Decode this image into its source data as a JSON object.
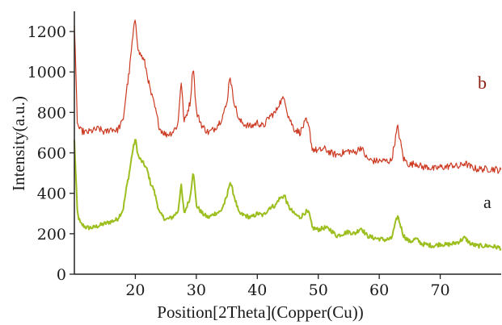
{
  "chart_data": {
    "type": "line",
    "title": "",
    "xlabel": "Position[2Theta](Copper(Cu))",
    "ylabel": "Intensity(a.u.)",
    "xlim": [
      10,
      80
    ],
    "ylim": [
      0,
      1300
    ],
    "xticks": [
      20,
      30,
      40,
      50,
      60,
      70
    ],
    "yticks": [
      0,
      200,
      400,
      600,
      800,
      1000,
      1200
    ],
    "grid": false,
    "series": [
      {
        "name": "a",
        "color": "#9cbf1f",
        "x": [
          10,
          10.5,
          11,
          12,
          13,
          14,
          15,
          16,
          17,
          18,
          18.5,
          19,
          19.5,
          20,
          20.5,
          21,
          21.5,
          22,
          22.5,
          23,
          24,
          25,
          26,
          27,
          27.5,
          28,
          29,
          29.5,
          30,
          31,
          32,
          33,
          34,
          35,
          35.5,
          36,
          37,
          38,
          39,
          40,
          41,
          42,
          43,
          43.5,
          44,
          44.5,
          45,
          46,
          47,
          48,
          48.5,
          49,
          50,
          51,
          52,
          53,
          54,
          55,
          56,
          57,
          58,
          59,
          60,
          61,
          62,
          63,
          64,
          65,
          66,
          67,
          68,
          69,
          70,
          71,
          72,
          73,
          74,
          75,
          76,
          77,
          78,
          79,
          80
        ],
        "values": [
          660,
          300,
          250,
          230,
          230,
          240,
          250,
          260,
          270,
          320,
          420,
          500,
          600,
          670,
          580,
          560,
          540,
          510,
          450,
          420,
          300,
          270,
          280,
          310,
          440,
          300,
          380,
          520,
          340,
          300,
          280,
          300,
          310,
          380,
          460,
          410,
          300,
          290,
          280,
          300,
          290,
          330,
          340,
          370,
          380,
          390,
          340,
          300,
          280,
          310,
          300,
          230,
          220,
          230,
          220,
          190,
          200,
          210,
          200,
          230,
          190,
          180,
          175,
          170,
          175,
          290,
          190,
          160,
          175,
          150,
          145,
          140,
          150,
          145,
          150,
          160,
          180,
          150,
          140,
          140,
          140,
          135,
          130
        ]
      },
      {
        "name": "b",
        "color": "#cc3a22",
        "x": [
          10,
          10.5,
          11,
          12,
          13,
          14,
          15,
          16,
          17,
          18,
          18.5,
          19,
          19.5,
          20,
          20.5,
          21,
          21.5,
          22,
          22.5,
          23,
          24,
          25,
          26,
          27,
          27.5,
          28,
          29,
          29.5,
          30,
          31,
          32,
          33,
          34,
          35,
          35.5,
          36,
          37,
          38,
          39,
          40,
          41,
          42,
          43,
          43.5,
          44,
          44.5,
          45,
          46,
          47,
          48,
          48.5,
          49,
          50,
          51,
          52,
          53,
          54,
          55,
          56,
          57,
          58,
          59,
          60,
          61,
          62,
          63,
          64,
          65,
          66,
          67,
          68,
          69,
          70,
          71,
          72,
          73,
          74,
          75,
          76,
          77,
          78,
          79,
          80
        ],
        "values": [
          1230,
          740,
          710,
          700,
          710,
          720,
          700,
          720,
          710,
          760,
          900,
          1000,
          1150,
          1270,
          1100,
          1080,
          1050,
          980,
          900,
          850,
          720,
          690,
          700,
          740,
          960,
          750,
          850,
          1040,
          800,
          730,
          700,
          720,
          760,
          840,
          990,
          880,
          760,
          740,
          730,
          750,
          730,
          780,
          800,
          840,
          860,
          870,
          790,
          720,
          700,
          760,
          720,
          620,
          610,
          620,
          600,
          590,
          600,
          610,
          600,
          630,
          570,
          560,
          560,
          560,
          560,
          730,
          570,
          540,
          550,
          530,
          530,
          520,
          530,
          530,
          540,
          530,
          550,
          530,
          520,
          520,
          520,
          520,
          510
        ]
      }
    ]
  }
}
